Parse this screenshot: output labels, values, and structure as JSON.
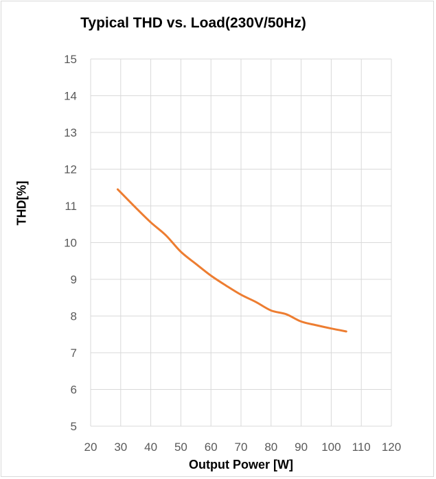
{
  "chart_data": {
    "type": "line",
    "title": "Typical THD vs. Load(230V/50Hz)",
    "xlabel": "Output Power [W]",
    "ylabel": "THD[%]",
    "xlim": [
      20,
      120
    ],
    "ylim": [
      5,
      15
    ],
    "xticks": [
      20,
      30,
      40,
      50,
      60,
      70,
      80,
      90,
      100,
      110,
      120
    ],
    "yticks": [
      5,
      6,
      7,
      8,
      9,
      10,
      11,
      12,
      13,
      14,
      15
    ],
    "grid": true,
    "legend": "none",
    "series": [
      {
        "color": "#ed7d31",
        "x": [
          29,
          35,
          40,
          45,
          50,
          55,
          60,
          65,
          70,
          75,
          80,
          85,
          90,
          95,
          100,
          105
        ],
        "y": [
          11.45,
          10.95,
          10.55,
          10.2,
          9.75,
          9.42,
          9.1,
          8.83,
          8.58,
          8.38,
          8.15,
          8.05,
          7.85,
          7.75,
          7.66,
          7.58
        ]
      }
    ]
  }
}
